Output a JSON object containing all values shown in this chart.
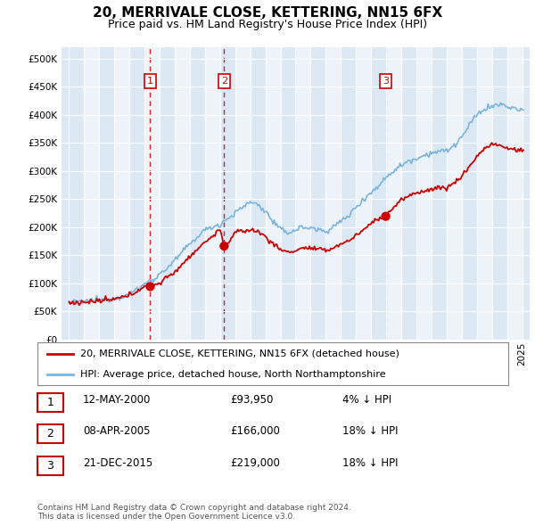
{
  "title": "20, MERRIVALE CLOSE, KETTERING, NN15 6FX",
  "subtitle": "Price paid vs. HM Land Registry's House Price Index (HPI)",
  "legend_line1": "20, MERRIVALE CLOSE, KETTERING, NN15 6FX (detached house)",
  "legend_line2": "HPI: Average price, detached house, North Northamptonshire",
  "footer1": "Contains HM Land Registry data © Crown copyright and database right 2024.",
  "footer2": "This data is licensed under the Open Government Licence v3.0.",
  "transactions": [
    {
      "num": 1,
      "date": "12-MAY-2000",
      "price": "£93,950",
      "hpi": "4% ↓ HPI",
      "year": 2000.37
    },
    {
      "num": 2,
      "date": "08-APR-2005",
      "price": "£166,000",
      "hpi": "18% ↓ HPI",
      "year": 2005.27
    },
    {
      "num": 3,
      "date": "21-DEC-2015",
      "price": "£219,000",
      "hpi": "18% ↓ HPI",
      "year": 2015.97
    }
  ],
  "transaction_prices": [
    93950,
    166000,
    219000
  ],
  "transaction_years": [
    2000.37,
    2005.27,
    2015.97
  ],
  "hpi_color": "#7ab4e0",
  "price_color": "#cc0000",
  "vline_red_color": "#cc0000",
  "vline_grey_color": "#aaaaaa",
  "label_border_color": "#cc0000",
  "ylim": [
    0,
    520000
  ],
  "yticks": [
    0,
    50000,
    100000,
    150000,
    200000,
    250000,
    300000,
    350000,
    400000,
    450000,
    500000
  ],
  "xlim_start": 1994.5,
  "xlim_end": 2025.5,
  "background_color": "#ffffff",
  "plot_bg_color": "#dce9f5",
  "grid_color": "#ffffff",
  "band_color_light": "#dce9f5",
  "band_color_white": "#eef3f9"
}
